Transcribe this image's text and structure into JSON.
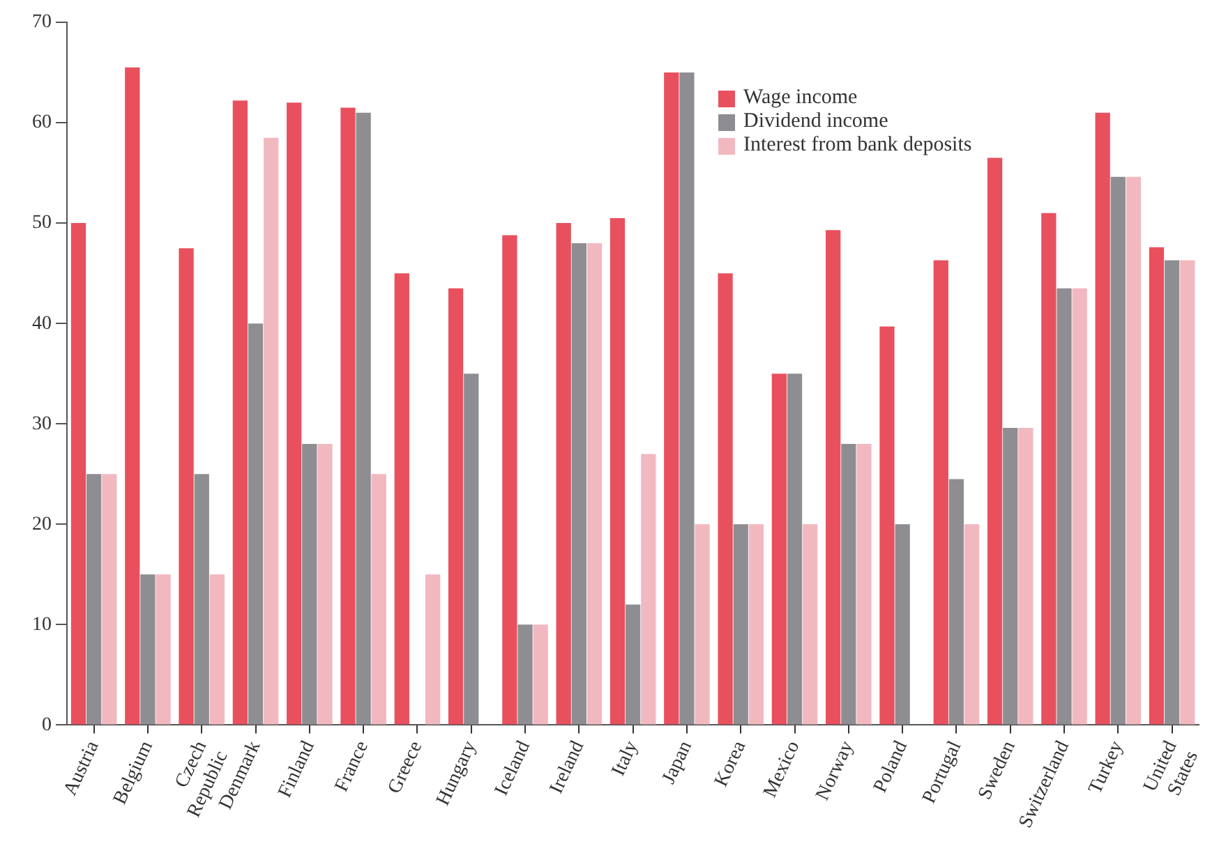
{
  "chart_data": {
    "type": "bar",
    "categories": [
      "Austria",
      "Belgium",
      "Czech Republic",
      "Denmark",
      "Finland",
      "France",
      "Greece",
      "Hungary",
      "Iceland",
      "Ireland",
      "Italy",
      "Japan",
      "Korea",
      "Mexico",
      "Norway",
      "Poland",
      "Portugal",
      "Sweden",
      "Switzerland",
      "Turkey",
      "United States"
    ],
    "series": [
      {
        "name": "Wage income",
        "color": "#e8505e",
        "values": [
          50,
          65.5,
          47.5,
          62.2,
          62,
          61.5,
          45,
          43.5,
          48.8,
          50,
          50.5,
          65,
          45,
          35,
          49.3,
          39.7,
          46.3,
          56.5,
          51,
          61,
          47.6
        ]
      },
      {
        "name": "Dividend income",
        "color": "#8e8e92",
        "values": [
          25,
          15,
          25,
          40,
          28,
          61,
          null,
          35,
          10,
          48,
          12,
          65,
          20,
          35,
          28,
          20,
          24.5,
          29.6,
          43.5,
          54.6,
          46.3
        ]
      },
      {
        "name": "Interest from bank deposits",
        "color": "#f2b8c0",
        "values": [
          25,
          15,
          15,
          58.5,
          28,
          25,
          15,
          null,
          10,
          48,
          27,
          20,
          20,
          20,
          28,
          null,
          20,
          29.6,
          43.5,
          54.6,
          46.3
        ]
      }
    ],
    "ylim": [
      0,
      70
    ],
    "yticks": [
      0,
      10,
      20,
      30,
      40,
      50,
      60,
      70
    ],
    "grid": false,
    "legend": "top right"
  }
}
